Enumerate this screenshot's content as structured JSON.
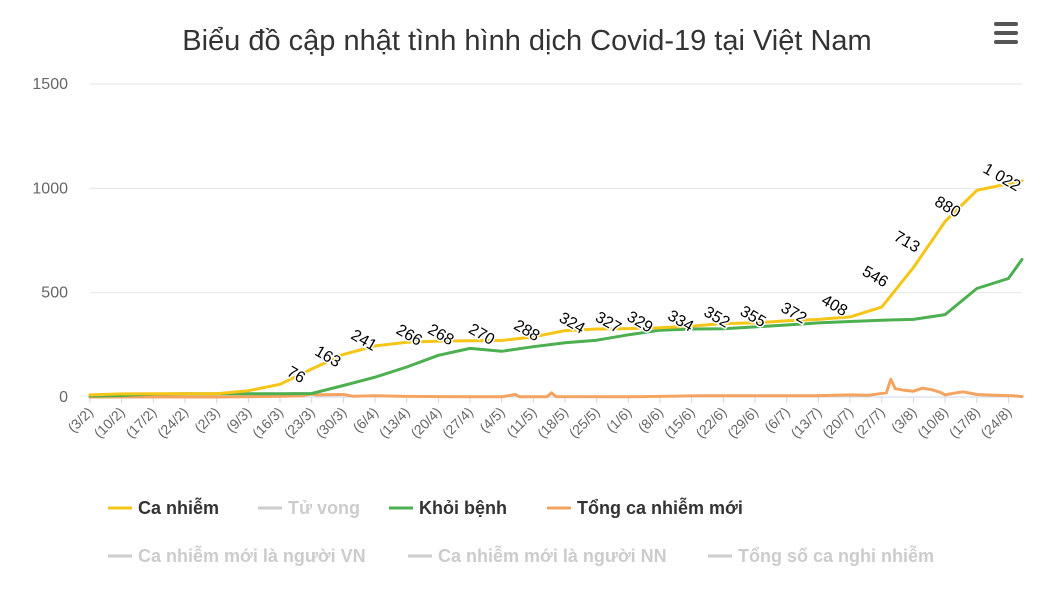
{
  "chart_data": {
    "type": "line",
    "title": "Biểu đồ cập nhật tình hình dịch Covid-19 tại Việt Nam",
    "ylim": [
      0,
      1500
    ],
    "yticks": [
      0,
      500,
      1000,
      1500
    ],
    "grid": true,
    "legend_position": "bottom",
    "x_tick_labels": [
      "(3/2)",
      "(10/2)",
      "(17/2)",
      "(24/2)",
      "(2/3)",
      "(9/3)",
      "(16/3)",
      "(23/3)",
      "(30/3)",
      "(6/4)",
      "(13/4)",
      "(20/4)",
      "(27/4)",
      "(4/5)",
      "(11/5)",
      "(18/5)",
      "(25/5)",
      "(1/6)",
      "(8/6)",
      "(15/6)",
      "(22/6)",
      "(29/6)",
      "(6/7)",
      "(13/7)",
      "(20/7)",
      "(27/7)",
      "(3/8)",
      "(10/8)",
      "(17/8)",
      "(24/8)"
    ],
    "series": [
      {
        "name": "Ca nhiễm",
        "color": "#f5c518",
        "visible": true,
        "points": [
          [
            0,
            10
          ],
          [
            7,
            15
          ],
          [
            14,
            16
          ],
          [
            21,
            16
          ],
          [
            28,
            16
          ],
          [
            35,
            30
          ],
          [
            42,
            61
          ],
          [
            49,
            134
          ],
          [
            56,
            204
          ],
          [
            63,
            245
          ],
          [
            70,
            262
          ],
          [
            77,
            268
          ],
          [
            84,
            270
          ],
          [
            91,
            271
          ],
          [
            98,
            288
          ],
          [
            105,
            318
          ],
          [
            112,
            326
          ],
          [
            119,
            328
          ],
          [
            126,
            332
          ],
          [
            133,
            340
          ],
          [
            140,
            352
          ],
          [
            147,
            355
          ],
          [
            154,
            365
          ],
          [
            161,
            372
          ],
          [
            168,
            384
          ],
          [
            175,
            431
          ],
          [
            182,
            620
          ],
          [
            189,
            841
          ],
          [
            196,
            990
          ],
          [
            203,
            1022
          ],
          [
            206,
            1036
          ]
        ]
      },
      {
        "name": "Tử vong",
        "color": "#cccccc",
        "visible": false,
        "points": []
      },
      {
        "name": "Khỏi bệnh",
        "color": "#4caf50",
        "visible": true,
        "points": [
          [
            0,
            5
          ],
          [
            7,
            7
          ],
          [
            14,
            14
          ],
          [
            21,
            16
          ],
          [
            28,
            16
          ],
          [
            35,
            16
          ],
          [
            42,
            16
          ],
          [
            49,
            17
          ],
          [
            56,
            55
          ],
          [
            63,
            95
          ],
          [
            70,
            144
          ],
          [
            77,
            200
          ],
          [
            84,
            233
          ],
          [
            91,
            219
          ],
          [
            98,
            241
          ],
          [
            105,
            260
          ],
          [
            112,
            272
          ],
          [
            119,
            298
          ],
          [
            126,
            320
          ],
          [
            133,
            326
          ],
          [
            140,
            327
          ],
          [
            147,
            336
          ],
          [
            154,
            345
          ],
          [
            161,
            355
          ],
          [
            168,
            362
          ],
          [
            175,
            368
          ],
          [
            182,
            372
          ],
          [
            189,
            395
          ],
          [
            196,
            520
          ],
          [
            203,
            568
          ],
          [
            206,
            659
          ]
        ]
      },
      {
        "name": "Tổng ca nhiễm mới",
        "color": "#f4a460",
        "visible": true,
        "points": [
          [
            0,
            0
          ],
          [
            28,
            0
          ],
          [
            34,
            1
          ],
          [
            43,
            4
          ],
          [
            47,
            6
          ],
          [
            49,
            14
          ],
          [
            50,
            10
          ],
          [
            56,
            12
          ],
          [
            58,
            4
          ],
          [
            63,
            6
          ],
          [
            70,
            3
          ],
          [
            77,
            2
          ],
          [
            84,
            1
          ],
          [
            91,
            1
          ],
          [
            94,
            12
          ],
          [
            95,
            1
          ],
          [
            101,
            1
          ],
          [
            102,
            20
          ],
          [
            103,
            2
          ],
          [
            119,
            1
          ],
          [
            135,
            6
          ],
          [
            160,
            6
          ],
          [
            168,
            10
          ],
          [
            172,
            8
          ],
          [
            176,
            20
          ],
          [
            177,
            85
          ],
          [
            178,
            40
          ],
          [
            180,
            32
          ],
          [
            182,
            28
          ],
          [
            184,
            42
          ],
          [
            186,
            35
          ],
          [
            188,
            22
          ],
          [
            189,
            10
          ],
          [
            191,
            18
          ],
          [
            193,
            25
          ],
          [
            196,
            12
          ],
          [
            200,
            8
          ],
          [
            204,
            6
          ],
          [
            206,
            2
          ]
        ]
      },
      {
        "name": "Ca nhiễm mới là người VN",
        "color": "#cccccc",
        "visible": false,
        "points": []
      },
      {
        "name": "Ca nhiễm mới là người NN",
        "color": "#cccccc",
        "visible": false,
        "points": []
      },
      {
        "name": "Tổng số ca nghi nhiễm",
        "color": "#cccccc",
        "visible": false,
        "points": []
      }
    ],
    "data_labels": [
      {
        "x": 45,
        "y": 76,
        "text": "76"
      },
      {
        "x": 52,
        "y": 163,
        "text": "163"
      },
      {
        "x": 60,
        "y": 241,
        "text": "241"
      },
      {
        "x": 70,
        "y": 266,
        "text": "266"
      },
      {
        "x": 77,
        "y": 268,
        "text": "268"
      },
      {
        "x": 86,
        "y": 270,
        "text": "270"
      },
      {
        "x": 96,
        "y": 288,
        "text": "288"
      },
      {
        "x": 106,
        "y": 324,
        "text": "324"
      },
      {
        "x": 114,
        "y": 327,
        "text": "327"
      },
      {
        "x": 121,
        "y": 329,
        "text": "329"
      },
      {
        "x": 130,
        "y": 334,
        "text": "334"
      },
      {
        "x": 138,
        "y": 352,
        "text": "352"
      },
      {
        "x": 146,
        "y": 355,
        "text": "355"
      },
      {
        "x": 155,
        "y": 372,
        "text": "372"
      },
      {
        "x": 164,
        "y": 408,
        "text": "408"
      },
      {
        "x": 173,
        "y": 546,
        "text": "546"
      },
      {
        "x": 180,
        "y": 713,
        "text": "713"
      },
      {
        "x": 189,
        "y": 880,
        "text": "880"
      },
      {
        "x": 201,
        "y": 1022,
        "text": "1 022"
      }
    ]
  },
  "toolbar": {
    "menu_icon": "hamburger-menu-icon"
  }
}
